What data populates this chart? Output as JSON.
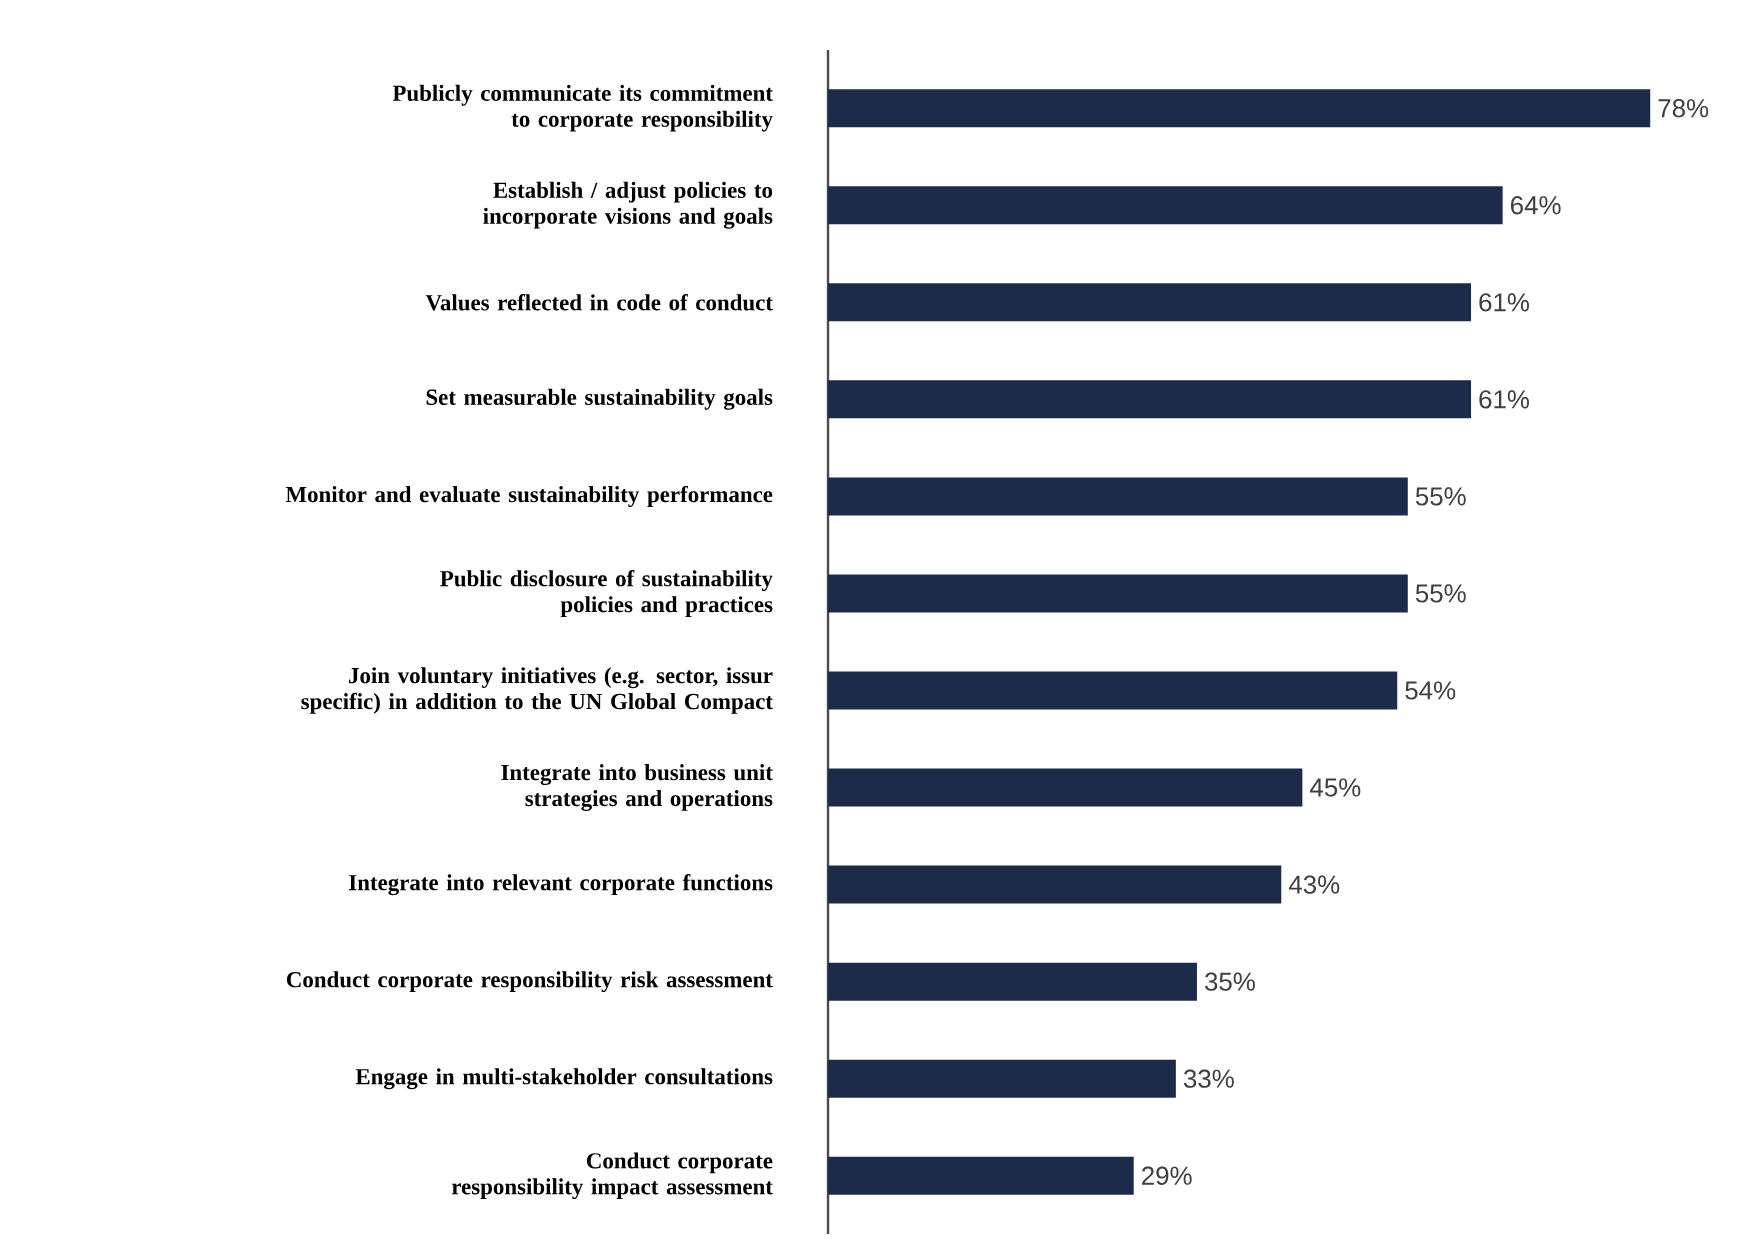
{
  "chart_data": {
    "type": "bar",
    "orientation": "horizontal",
    "categories": [
      "Publicly communicate its commitment to corporate responsibility",
      "Establish / adjust policies to incorporate visions and goals",
      "Values reflected in code of conduct",
      "Set measurable sustainability goals",
      "Monitor and evaluate sustainability performance",
      "Public disclosure of sustainability policies and practices",
      "Join voluntary initiatives (e.g. sector, issur specific) in addition to the UN Global Compact",
      "Integrate into business unit strategies and operations",
      "Integrate into relevant corporate functions",
      "Conduct corporate responsibility risk assessment",
      "Engage in multi-stakeholder consultations",
      "Conduct corporate responsibility impact assessment"
    ],
    "values": [
      78,
      64,
      61,
      61,
      55,
      55,
      54,
      45,
      43,
      35,
      33,
      29
    ],
    "value_labels": [
      "78%",
      "64%",
      "61%",
      "61%",
      "55%",
      "55%",
      "54%",
      "45%",
      "43%",
      "35%",
      "33%",
      "29%"
    ],
    "color": "#1c2b4a"
  }
}
